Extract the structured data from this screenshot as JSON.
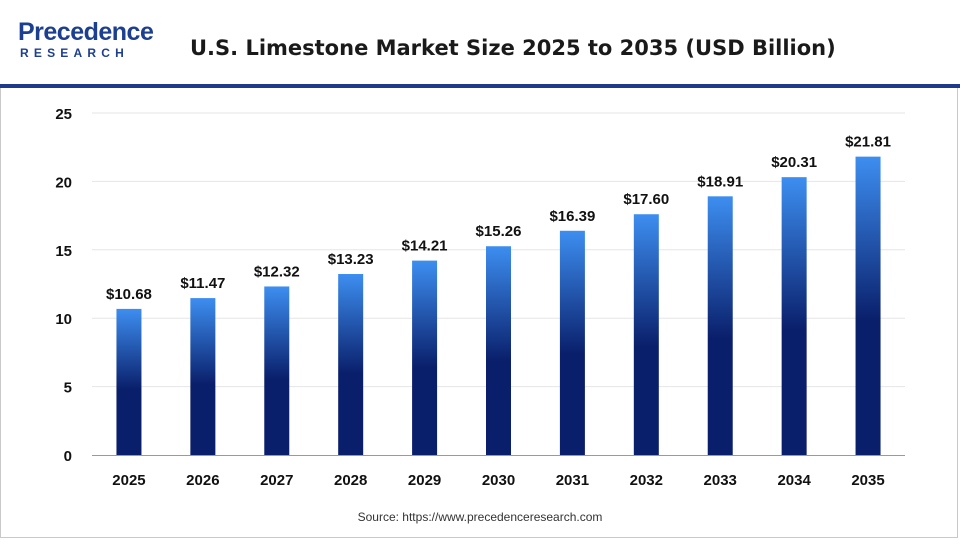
{
  "header": {
    "logo_top": "Precedence",
    "logo_bottom": "RESEARCH",
    "title": "U.S. Limestone Market Size 2025 to 2035 (USD Billion)"
  },
  "footer": {
    "source": "Source: https://www.precedenceresearch.com"
  },
  "colors": {
    "brand": "#1d3f8f",
    "bar_top": "#3d8ef0",
    "bar_bottom": "#0a1f6b"
  },
  "chart_data": {
    "type": "bar",
    "title": "U.S. Limestone Market Size 2025 to 2035 (USD Billion)",
    "xlabel": "",
    "ylabel": "",
    "categories": [
      "2025",
      "2026",
      "2027",
      "2028",
      "2029",
      "2030",
      "2031",
      "2032",
      "2033",
      "2034",
      "2035"
    ],
    "values": [
      10.68,
      11.47,
      12.32,
      13.23,
      14.21,
      15.26,
      16.39,
      17.6,
      18.91,
      20.31,
      21.81
    ],
    "value_labels": [
      "$10.68",
      "$11.47",
      "$12.32",
      "$13.23",
      "$14.21",
      "$15.26",
      "$16.39",
      "$17.60",
      "$18.91",
      "$20.31",
      "$21.81"
    ],
    "ylim": [
      0,
      25
    ],
    "yticks": [
      "0",
      "5",
      "10",
      "15",
      "20",
      "25"
    ],
    "grid": true,
    "legend": "none"
  }
}
